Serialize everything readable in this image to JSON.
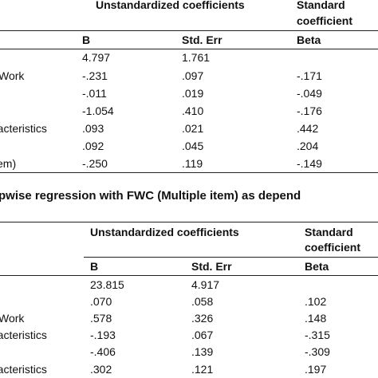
{
  "table1": {
    "header": {
      "group_unstd": "Unstandardized coefficients",
      "group_std_line1": "Standard",
      "group_std_line2": "coefficient",
      "col_b": "B",
      "col_se": "Std. Err",
      "col_beta": "Beta"
    },
    "rows": [
      {
        "label": "",
        "b": "4.797",
        "se": "1.761",
        "beta": ""
      },
      {
        "label": "Work",
        "b": "-.231",
        "se": ".097",
        "beta": "-.171"
      },
      {
        "label": "",
        "b": "-.011",
        "se": ".019",
        "beta": "-.049"
      },
      {
        "label": "",
        "b": "-1.054",
        "se": ".410",
        "beta": "-.176"
      },
      {
        "label": "racteristics",
        "b": ".093",
        "se": ".021",
        "beta": ".442"
      },
      {
        "label": "",
        "b": ".092",
        "se": ".045",
        "beta": ".204"
      },
      {
        "label": "em)",
        "b": "-.250",
        "se": ".119",
        "beta": "-.149"
      }
    ]
  },
  "caption2": "pwise regression with FWC (Multiple item) as depend",
  "table2": {
    "header": {
      "group_unstd": "Unstandardized coefficients",
      "group_std_line1": "Standard",
      "group_std_line2": "coefficient",
      "col_b": "B",
      "col_se": "Std. Err",
      "col_beta": "Beta"
    },
    "rows": [
      {
        "label": "",
        "b": "23.815",
        "se": "4.917",
        "beta": ""
      },
      {
        "label": "",
        "b": ".070",
        "se": ".058",
        "beta": ".102"
      },
      {
        "label": "Work",
        "b": ".578",
        "se": ".326",
        "beta": ".148"
      },
      {
        "label": "racteristics",
        "b": "-.193",
        "se": ".067",
        "beta": "-.315"
      },
      {
        "label": "",
        "b": "-.406",
        "se": ".139",
        "beta": "-.309"
      },
      {
        "label": "racteristics",
        "b": ".302",
        "se": ".121",
        "beta": ".197"
      }
    ]
  }
}
